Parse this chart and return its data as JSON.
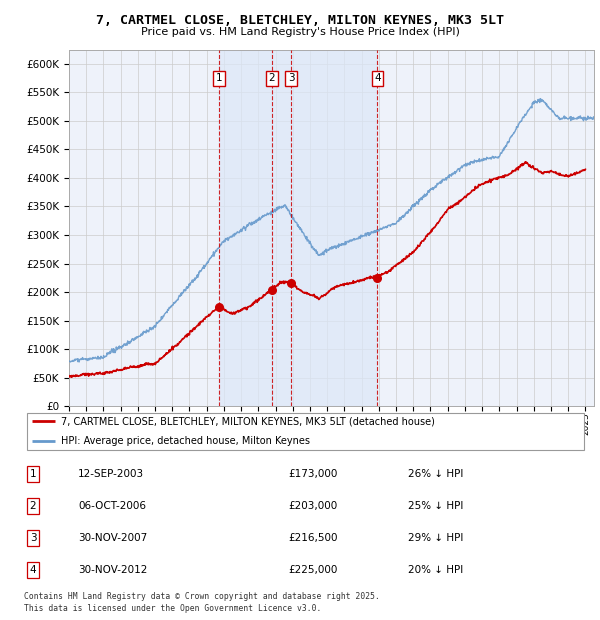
{
  "title": "7, CARTMEL CLOSE, BLETCHLEY, MILTON KEYNES, MK3 5LT",
  "subtitle": "Price paid vs. HM Land Registry's House Price Index (HPI)",
  "ylim": [
    0,
    625000
  ],
  "yticks": [
    0,
    50000,
    100000,
    150000,
    200000,
    250000,
    300000,
    350000,
    400000,
    450000,
    500000,
    550000,
    600000
  ],
  "plot_bg_color": "#eef2fa",
  "grid_color": "#cccccc",
  "red_color": "#cc0000",
  "blue_color": "#6699cc",
  "sale_points": [
    {
      "label": "1",
      "price": 173000,
      "x_year": 2003.71
    },
    {
      "label": "2",
      "price": 203000,
      "x_year": 2006.77
    },
    {
      "label": "3",
      "price": 216500,
      "x_year": 2007.92
    },
    {
      "label": "4",
      "price": 225000,
      "x_year": 2012.92
    }
  ],
  "shade_ranges": [
    [
      2003.71,
      2006.77
    ],
    [
      2006.77,
      2007.92
    ],
    [
      2007.92,
      2012.92
    ]
  ],
  "legend_entries": [
    {
      "color": "#cc0000",
      "label": "7, CARTMEL CLOSE, BLETCHLEY, MILTON KEYNES, MK3 5LT (detached house)"
    },
    {
      "color": "#6699cc",
      "label": "HPI: Average price, detached house, Milton Keynes"
    }
  ],
  "table_rows": [
    [
      "1",
      "12-SEP-2003",
      "£173,000",
      "26% ↓ HPI"
    ],
    [
      "2",
      "06-OCT-2006",
      "£203,000",
      "25% ↓ HPI"
    ],
    [
      "3",
      "30-NOV-2007",
      "£216,500",
      "29% ↓ HPI"
    ],
    [
      "4",
      "30-NOV-2012",
      "£225,000",
      "20% ↓ HPI"
    ]
  ],
  "footer": "Contains HM Land Registry data © Crown copyright and database right 2025.\nThis data is licensed under the Open Government Licence v3.0.",
  "xmin": 1995.0,
  "xmax": 2025.5
}
